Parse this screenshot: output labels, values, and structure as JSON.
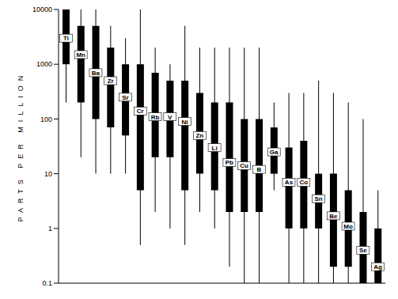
{
  "chart_data": {
    "type": "range",
    "ylabel": "PARTS PER MILLION",
    "log": "y",
    "tick_labels": "y",
    "grid": false,
    "color": "#000000",
    "categories": [
      "Ti",
      "Mn",
      "Ba",
      "Zr",
      "Sr",
      "Cr",
      "Rb",
      "V",
      "Ni",
      "Zn",
      "Li",
      "Pb",
      "Cu",
      "B",
      "Ga",
      "As",
      "Co",
      "Sn",
      "Be",
      "Mo",
      "Se",
      "Ag"
    ],
    "min": [
      200,
      20,
      10,
      10,
      10,
      0.5,
      2,
      1,
      0.5,
      2,
      1,
      0.2,
      0.1,
      0.1,
      5,
      0.1,
      0.1,
      0.1,
      0.1,
      0.1,
      0.1,
      0.1
    ],
    "max": [
      10000,
      10000,
      10000,
      5000,
      3000,
      10000,
      2000,
      1000,
      5000,
      2000,
      2000,
      2000,
      2000,
      2000,
      200,
      300,
      300,
      500,
      300,
      200,
      100,
      5
    ],
    "low": [
      1000,
      200,
      100,
      70,
      50,
      5,
      20,
      20,
      5,
      10,
      5,
      2,
      2,
      2,
      10,
      1,
      1,
      1,
      0.2,
      0.2,
      0.1,
      0.1
    ],
    "high": [
      10000,
      5000,
      5000,
      2000,
      1000,
      1000,
      700,
      500,
      500,
      300,
      200,
      200,
      100,
      100,
      70,
      30,
      40,
      10,
      10,
      5,
      2,
      1
    ],
    "median": [
      3000,
      1500,
      700,
      500,
      250,
      140,
      110,
      110,
      90,
      50,
      30,
      16,
      14,
      12,
      25,
      7,
      7,
      3.5,
      1.7,
      1.1,
      0.4,
      0.2
    ],
    "ylim": [
      0.1,
      10000
    ],
    "yticks": [
      0.1,
      1,
      10,
      100,
      1000,
      10000
    ]
  }
}
